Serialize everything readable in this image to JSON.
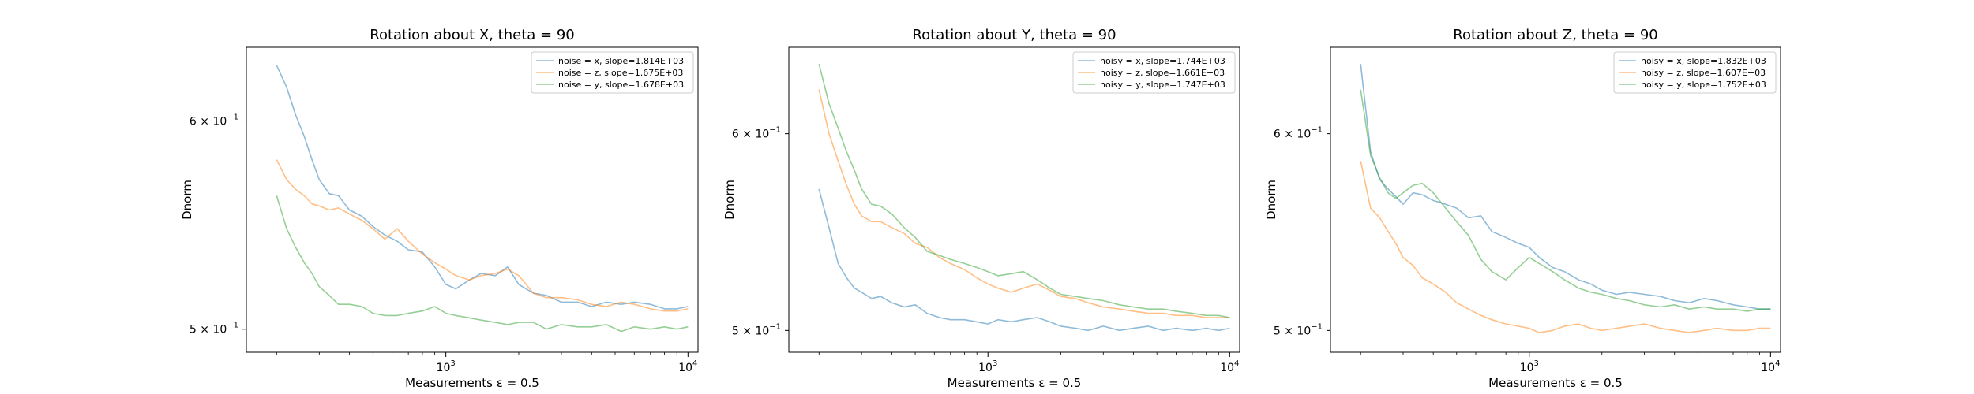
{
  "chart_data": [
    {
      "type": "line",
      "title": "Rotation about X, theta = 90",
      "xlabel": "Measurements ε = 0.5",
      "ylabel": "Dnorm",
      "xscale": "log",
      "yscale": "log",
      "xlim": [
        150,
        11000
      ],
      "ylim": [
        0.49,
        0.64
      ],
      "yticks": [
        {
          "value": 0.6,
          "base": "6",
          "exp": "−1"
        },
        {
          "value": 0.5,
          "base": "5",
          "exp": "−1"
        }
      ],
      "xticks": [
        {
          "value": 1000,
          "base": "10",
          "exp": "3"
        },
        {
          "value": 10000,
          "base": "10",
          "exp": "4"
        }
      ],
      "legend_position": "upper right",
      "series": [
        {
          "name": "noise = x, slope=1.814E+03",
          "color": "#1f77b4",
          "x": [
            200,
            220,
            240,
            260,
            280,
            300,
            330,
            360,
            400,
            450,
            500,
            560,
            630,
            700,
            800,
            900,
            1000,
            1100,
            1250,
            1400,
            1600,
            1800,
            2000,
            2300,
            2600,
            3000,
            3500,
            4000,
            4600,
            5300,
            6000,
            7000,
            8000,
            9000,
            10000
          ],
          "y": [
            0.63,
            0.618,
            0.603,
            0.592,
            0.58,
            0.57,
            0.563,
            0.562,
            0.555,
            0.552,
            0.547,
            0.543,
            0.54,
            0.536,
            0.535,
            0.528,
            0.52,
            0.518,
            0.522,
            0.525,
            0.524,
            0.528,
            0.52,
            0.516,
            0.515,
            0.512,
            0.512,
            0.51,
            0.512,
            0.511,
            0.512,
            0.511,
            0.509,
            0.509,
            0.51
          ]
        },
        {
          "name": "noise = z, slope=1.675E+03",
          "color": "#ff7f0e",
          "x": [
            200,
            220,
            240,
            260,
            280,
            300,
            330,
            360,
            400,
            450,
            500,
            560,
            630,
            700,
            800,
            900,
            1000,
            1100,
            1250,
            1400,
            1600,
            1800,
            2000,
            2300,
            2600,
            3000,
            3500,
            4000,
            4600,
            5300,
            6000,
            7000,
            8000,
            9000,
            10000
          ],
          "y": [
            0.58,
            0.57,
            0.565,
            0.562,
            0.558,
            0.557,
            0.555,
            0.556,
            0.553,
            0.55,
            0.546,
            0.541,
            0.546,
            0.54,
            0.534,
            0.53,
            0.527,
            0.524,
            0.522,
            0.524,
            0.525,
            0.527,
            0.524,
            0.516,
            0.514,
            0.514,
            0.513,
            0.511,
            0.51,
            0.512,
            0.511,
            0.509,
            0.508,
            0.508,
            0.509
          ]
        },
        {
          "name": "noise = y, slope=1.678E+03",
          "color": "#2ca02c",
          "x": [
            200,
            220,
            240,
            260,
            280,
            300,
            330,
            360,
            400,
            450,
            500,
            560,
            630,
            700,
            800,
            900,
            1000,
            1100,
            1250,
            1400,
            1600,
            1800,
            2000,
            2300,
            2600,
            3000,
            3500,
            4000,
            4600,
            5300,
            6000,
            7000,
            8000,
            9000,
            10000
          ],
          "y": [
            0.562,
            0.546,
            0.537,
            0.53,
            0.525,
            0.519,
            0.515,
            0.511,
            0.511,
            0.51,
            0.507,
            0.506,
            0.506,
            0.507,
            0.508,
            0.51,
            0.507,
            0.506,
            0.505,
            0.504,
            0.503,
            0.502,
            0.503,
            0.503,
            0.5,
            0.502,
            0.501,
            0.501,
            0.502,
            0.499,
            0.501,
            0.5,
            0.501,
            0.5,
            0.501
          ]
        }
      ]
    },
    {
      "type": "line",
      "title": "Rotation about Y, theta = 90",
      "xlabel": "Measurements ε = 0.5",
      "ylabel": "Dnorm",
      "xscale": "log",
      "yscale": "log",
      "xlim": [
        150,
        11000
      ],
      "ylim": [
        0.49,
        0.65
      ],
      "yticks": [
        {
          "value": 0.6,
          "base": "6",
          "exp": "−1"
        },
        {
          "value": 0.5,
          "base": "5",
          "exp": "−1"
        }
      ],
      "xticks": [
        {
          "value": 1000,
          "base": "10",
          "exp": "3"
        },
        {
          "value": 10000,
          "base": "10",
          "exp": "4"
        }
      ],
      "legend_position": "upper right",
      "series": [
        {
          "name": "noisy = x, slope=1.744E+03",
          "color": "#1f77b4",
          "x": [
            200,
            220,
            240,
            260,
            280,
            300,
            330,
            360,
            400,
            450,
            500,
            560,
            630,
            700,
            800,
            900,
            1000,
            1100,
            1250,
            1400,
            1600,
            1800,
            2000,
            2300,
            2600,
            3000,
            3500,
            4000,
            4600,
            5300,
            6000,
            7000,
            8000,
            9000,
            10000
          ],
          "y": [
            0.57,
            0.55,
            0.532,
            0.525,
            0.52,
            0.518,
            0.515,
            0.516,
            0.513,
            0.511,
            0.512,
            0.508,
            0.506,
            0.505,
            0.505,
            0.504,
            0.503,
            0.505,
            0.504,
            0.505,
            0.506,
            0.504,
            0.502,
            0.501,
            0.5,
            0.502,
            0.5,
            0.501,
            0.502,
            0.5,
            0.501,
            0.5,
            0.501,
            0.5,
            0.501
          ]
        },
        {
          "name": "noisy = z, slope=1.661E+03",
          "color": "#ff7f0e",
          "x": [
            200,
            220,
            240,
            260,
            280,
            300,
            330,
            360,
            400,
            450,
            500,
            560,
            630,
            700,
            800,
            900,
            1000,
            1100,
            1250,
            1400,
            1600,
            1800,
            2000,
            2300,
            2600,
            3000,
            3500,
            4000,
            4600,
            5300,
            6000,
            7000,
            8000,
            9000,
            10000
          ],
          "y": [
            0.625,
            0.6,
            0.585,
            0.572,
            0.562,
            0.556,
            0.553,
            0.553,
            0.55,
            0.547,
            0.542,
            0.54,
            0.535,
            0.532,
            0.529,
            0.525,
            0.522,
            0.52,
            0.518,
            0.52,
            0.522,
            0.519,
            0.516,
            0.515,
            0.513,
            0.511,
            0.51,
            0.509,
            0.508,
            0.508,
            0.507,
            0.507,
            0.506,
            0.506,
            0.506
          ]
        },
        {
          "name": "noisy = y, slope=1.747E+03",
          "color": "#2ca02c",
          "x": [
            200,
            220,
            240,
            260,
            280,
            300,
            330,
            360,
            400,
            450,
            500,
            560,
            630,
            700,
            800,
            900,
            1000,
            1100,
            1250,
            1400,
            1600,
            1800,
            2000,
            2300,
            2600,
            3000,
            3500,
            4000,
            4600,
            5300,
            6000,
            7000,
            8000,
            9000,
            10000
          ],
          "y": [
            0.64,
            0.617,
            0.603,
            0.59,
            0.58,
            0.57,
            0.562,
            0.561,
            0.557,
            0.55,
            0.545,
            0.538,
            0.536,
            0.534,
            0.532,
            0.53,
            0.528,
            0.526,
            0.527,
            0.528,
            0.524,
            0.52,
            0.517,
            0.516,
            0.515,
            0.514,
            0.512,
            0.511,
            0.51,
            0.51,
            0.509,
            0.508,
            0.507,
            0.507,
            0.506
          ]
        }
      ]
    },
    {
      "type": "line",
      "title": "Rotation about Z, theta = 90",
      "xlabel": "Measurements ε = 0.5",
      "ylabel": "Dnorm",
      "xscale": "log",
      "yscale": "log",
      "xlim": [
        150,
        11000
      ],
      "ylim": [
        0.49,
        0.65
      ],
      "yticks": [
        {
          "value": 0.6,
          "base": "6",
          "exp": "−1"
        },
        {
          "value": 0.5,
          "base": "5",
          "exp": "−1"
        }
      ],
      "xticks": [
        {
          "value": 1000,
          "base": "10",
          "exp": "3"
        },
        {
          "value": 10000,
          "base": "10",
          "exp": "4"
        }
      ],
      "legend_position": "upper right",
      "series": [
        {
          "name": "noisy = x, slope=1.832E+03",
          "color": "#1f77b4",
          "x": [
            200,
            220,
            240,
            260,
            280,
            300,
            330,
            360,
            400,
            450,
            500,
            560,
            630,
            700,
            800,
            900,
            1000,
            1100,
            1250,
            1400,
            1600,
            1800,
            2000,
            2300,
            2600,
            3000,
            3500,
            4000,
            4600,
            5300,
            6000,
            7000,
            8000,
            9000,
            10000
          ],
          "y": [
            0.64,
            0.59,
            0.575,
            0.57,
            0.566,
            0.562,
            0.568,
            0.567,
            0.564,
            0.562,
            0.56,
            0.555,
            0.556,
            0.548,
            0.545,
            0.542,
            0.54,
            0.535,
            0.53,
            0.528,
            0.524,
            0.522,
            0.519,
            0.517,
            0.518,
            0.517,
            0.516,
            0.514,
            0.513,
            0.515,
            0.514,
            0.512,
            0.511,
            0.51,
            0.51
          ]
        },
        {
          "name": "noisy = z, slope=1.607E+03",
          "color": "#ff7f0e",
          "x": [
            200,
            220,
            240,
            260,
            280,
            300,
            330,
            360,
            400,
            450,
            500,
            560,
            630,
            700,
            800,
            900,
            1000,
            1100,
            1250,
            1400,
            1600,
            1800,
            2000,
            2300,
            2600,
            3000,
            3500,
            4000,
            4600,
            5300,
            6000,
            7000,
            8000,
            9000,
            10000
          ],
          "y": [
            0.585,
            0.56,
            0.555,
            0.548,
            0.542,
            0.535,
            0.531,
            0.525,
            0.522,
            0.518,
            0.513,
            0.51,
            0.507,
            0.505,
            0.503,
            0.502,
            0.501,
            0.499,
            0.5,
            0.502,
            0.503,
            0.501,
            0.5,
            0.501,
            0.502,
            0.503,
            0.501,
            0.5,
            0.499,
            0.5,
            0.501,
            0.5,
            0.5,
            0.501,
            0.501
          ]
        },
        {
          "name": "noisy = y, slope=1.752E+03",
          "color": "#2ca02c",
          "x": [
            200,
            220,
            240,
            260,
            280,
            300,
            330,
            360,
            400,
            450,
            500,
            560,
            630,
            700,
            800,
            900,
            1000,
            1100,
            1250,
            1400,
            1600,
            1800,
            2000,
            2300,
            2600,
            3000,
            3500,
            4000,
            4600,
            5300,
            6000,
            7000,
            8000,
            9000,
            10000
          ],
          "y": [
            0.625,
            0.588,
            0.576,
            0.568,
            0.565,
            0.568,
            0.572,
            0.573,
            0.568,
            0.56,
            0.553,
            0.546,
            0.534,
            0.528,
            0.524,
            0.53,
            0.535,
            0.532,
            0.528,
            0.524,
            0.52,
            0.518,
            0.517,
            0.515,
            0.514,
            0.512,
            0.511,
            0.512,
            0.51,
            0.511,
            0.51,
            0.51,
            0.509,
            0.51,
            0.51
          ]
        }
      ]
    }
  ]
}
